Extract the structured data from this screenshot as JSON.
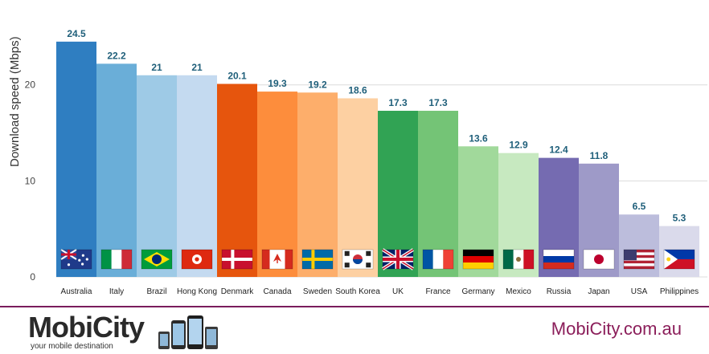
{
  "chart_data": {
    "type": "bar",
    "title": "",
    "xlabel": "",
    "ylabel": "Download speed (Mbps)",
    "ylim": [
      0,
      25
    ],
    "yticks": [
      0,
      10,
      20
    ],
    "grid": true,
    "categories": [
      "Australia",
      "Italy",
      "Brazil",
      "Hong Kong",
      "Denmark",
      "Canada",
      "Sweden",
      "South Korea",
      "UK",
      "France",
      "Germany",
      "Mexico",
      "Russia",
      "Japan",
      "USA",
      "Philippines"
    ],
    "values": [
      24.5,
      22.2,
      21,
      21,
      20.1,
      19.3,
      19.2,
      18.6,
      17.3,
      17.3,
      13.6,
      12.9,
      12.4,
      11.8,
      6.5,
      5.3
    ],
    "value_labels": [
      "24.5",
      "22.2",
      "21",
      "21",
      "20.1",
      "19.3",
      "19.2",
      "18.6",
      "17.3",
      "17.3",
      "13.6",
      "12.9",
      "12.4",
      "11.8",
      "6.5",
      "5.3"
    ],
    "bar_colors": [
      "#2f7ec1",
      "#6aaed8",
      "#9ecae6",
      "#c4daf0",
      "#e6550d",
      "#fd8d3c",
      "#fdae6b",
      "#fdd0a2",
      "#31a354",
      "#74c476",
      "#a1d99b",
      "#c7e9c0",
      "#756bb1",
      "#9e9ac8",
      "#bcbddc",
      "#dadaeb"
    ],
    "flags": [
      "australia-flag",
      "italy-flag",
      "brazil-flag",
      "hong-kong-flag",
      "denmark-flag",
      "canada-flag",
      "sweden-flag",
      "south-korea-flag",
      "uk-flag",
      "france-flag",
      "germany-flag",
      "mexico-flag",
      "russia-flag",
      "japan-flag",
      "usa-flag",
      "philippines-flag"
    ]
  },
  "footer": {
    "logo_text": "MobiCity",
    "logo_tagline": "your mobile destination",
    "url": "MobiCity.com.au",
    "accent_color": "#8b1e5a"
  }
}
